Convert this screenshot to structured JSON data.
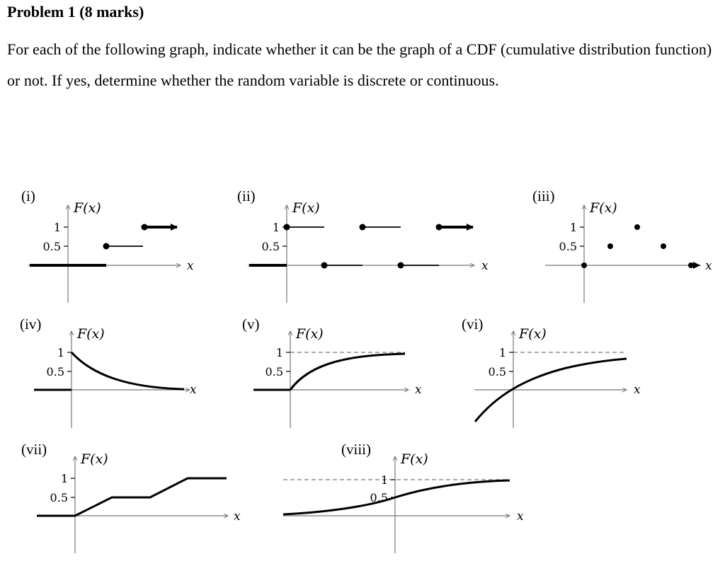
{
  "problem": {
    "heading": "Problem 1 (8 marks)",
    "text": "For each of the following graph, indicate whether it can be the graph of a CDF (cumulative distribution function) or not. If yes, determine whether the random variable is discrete or continuous."
  },
  "graphs": {
    "i": {
      "label": "(i)",
      "fx": "F(x)",
      "t1": "1",
      "t05": "0.5",
      "x": "x"
    },
    "ii": {
      "label": "(ii)",
      "fx": "F(x)",
      "t1": "1",
      "t05": "0.5",
      "x": "x"
    },
    "iii": {
      "label": "(iii)",
      "fx": "F(x)",
      "t1": "1",
      "t05": "0.5",
      "x": "x"
    },
    "iv": {
      "label": "(iv)",
      "fx": "F(x)",
      "t1": "1",
      "t05": "0.5",
      "x": "x"
    },
    "v": {
      "label": "(v)",
      "fx": "F(x)",
      "t1": "1",
      "t05": "0.5",
      "x": "x"
    },
    "vi": {
      "label": "(vi)",
      "fx": "F(x)",
      "t1": "1",
      "t05": "0.5",
      "x": "x"
    },
    "vii": {
      "label": "(vii)",
      "fx": "F(x)",
      "t1": "1",
      "t05": "0.5",
      "x": "x"
    },
    "viii": {
      "label": "(viii)",
      "fx": "F(x)",
      "t1": "1",
      "t05": "0.5",
      "x": "x"
    }
  }
}
